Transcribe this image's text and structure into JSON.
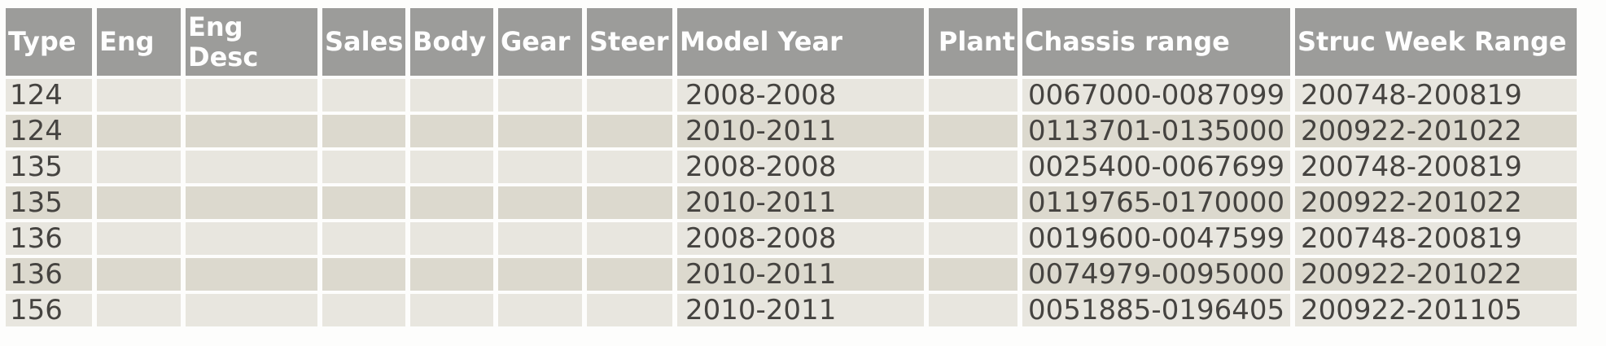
{
  "colors": {
    "header_bg": "#9c9c9a",
    "header_text": "#fefefe",
    "row_light": "#e8e6df",
    "row_dark": "#dcd9ce",
    "data_text": "#454340",
    "page_bg": "#fdfdfc"
  },
  "table": {
    "columns": [
      {
        "key": "type",
        "label": "Type",
        "header_align": "left"
      },
      {
        "key": "eng",
        "label": "Eng",
        "header_align": "left"
      },
      {
        "key": "eng_desc",
        "label": "Eng Desc",
        "header_align": "left"
      },
      {
        "key": "sales",
        "label": "Sales",
        "header_align": "right"
      },
      {
        "key": "body",
        "label": "Body",
        "header_align": "left"
      },
      {
        "key": "gear",
        "label": "Gear",
        "header_align": "left"
      },
      {
        "key": "steer",
        "label": "Steer",
        "header_align": "left"
      },
      {
        "key": "model_year",
        "label": "Model Year",
        "header_align": "left"
      },
      {
        "key": "plant",
        "label": "Plant",
        "header_align": "right"
      },
      {
        "key": "chassis_range",
        "label": "Chassis range",
        "header_align": "left"
      },
      {
        "key": "struc_week_range",
        "label": "Struc Week Range",
        "header_align": "left"
      }
    ],
    "rows": [
      {
        "type": "124",
        "eng": "",
        "eng_desc": "",
        "sales": "",
        "body": "",
        "gear": "",
        "steer": "",
        "model_year": "2008-2008",
        "plant": "",
        "chassis_range": "0067000-0087099",
        "struc_week_range": "200748-200819"
      },
      {
        "type": "124",
        "eng": "",
        "eng_desc": "",
        "sales": "",
        "body": "",
        "gear": "",
        "steer": "",
        "model_year": "2010-2011",
        "plant": "",
        "chassis_range": "0113701-0135000",
        "struc_week_range": "200922-201022"
      },
      {
        "type": "135",
        "eng": "",
        "eng_desc": "",
        "sales": "",
        "body": "",
        "gear": "",
        "steer": "",
        "model_year": "2008-2008",
        "plant": "",
        "chassis_range": "0025400-0067699",
        "struc_week_range": "200748-200819"
      },
      {
        "type": "135",
        "eng": "",
        "eng_desc": "",
        "sales": "",
        "body": "",
        "gear": "",
        "steer": "",
        "model_year": "2010-2011",
        "plant": "",
        "chassis_range": "0119765-0170000",
        "struc_week_range": "200922-201022"
      },
      {
        "type": "136",
        "eng": "",
        "eng_desc": "",
        "sales": "",
        "body": "",
        "gear": "",
        "steer": "",
        "model_year": "2008-2008",
        "plant": "",
        "chassis_range": "0019600-0047599",
        "struc_week_range": "200748-200819"
      },
      {
        "type": "136",
        "eng": "",
        "eng_desc": "",
        "sales": "",
        "body": "",
        "gear": "",
        "steer": "",
        "model_year": "2010-2011",
        "plant": "",
        "chassis_range": "0074979-0095000",
        "struc_week_range": "200922-201022"
      },
      {
        "type": "156",
        "eng": "",
        "eng_desc": "",
        "sales": "",
        "body": "",
        "gear": "",
        "steer": "",
        "model_year": "2010-2011",
        "plant": "",
        "chassis_range": "0051885-0196405",
        "struc_week_range": "200922-201105"
      }
    ]
  }
}
